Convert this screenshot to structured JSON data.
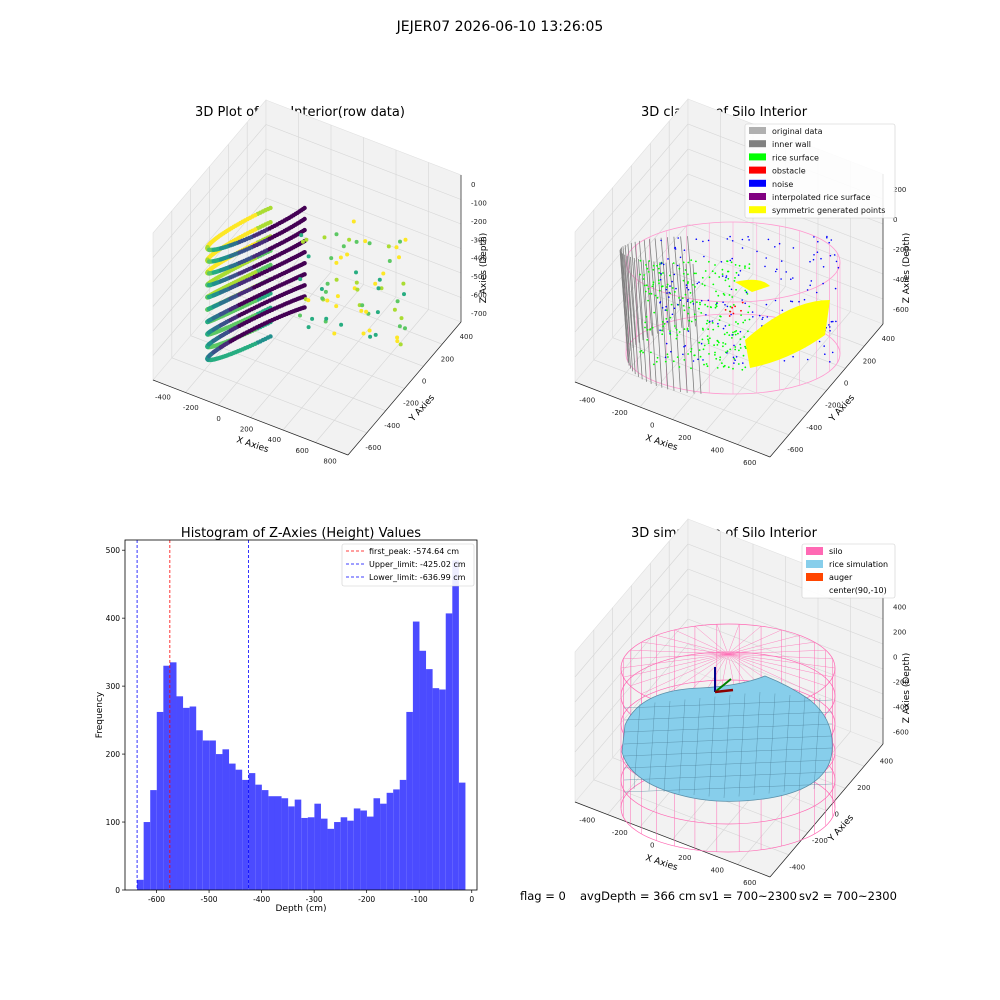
{
  "figure": {
    "suptitle": "JEJER07 2026-06-10 13:26:05"
  },
  "status_line": {
    "flag": "flag = 0",
    "avg_depth": "avgDepth = 366 cm",
    "sv1": "sv1 = 700~2300",
    "sv2": "sv2 = 700~2300"
  },
  "chart_data": [
    {
      "type": "scatter",
      "title": "3D Plot of Silo Interior(row data)",
      "xlabel": "X Axies",
      "ylabel": "Y Axies",
      "zlabel": "Z Axies (Depth)",
      "x_ticks": [
        -400,
        -200,
        0,
        200,
        400,
        600,
        800
      ],
      "y_ticks": [
        -600,
        -400,
        -200,
        0,
        200,
        400
      ],
      "z_ticks": [
        0,
        -100,
        -200,
        -300,
        -400,
        -500,
        -600,
        -700
      ],
      "colormap": "viridis"
    },
    {
      "type": "scatter",
      "title": "3D classify of Silo Interior",
      "xlabel": "X Axies",
      "ylabel": "Y Axies",
      "zlabel": "Z Axies (Depth)",
      "x_ticks": [
        -400,
        -200,
        0,
        200,
        400,
        600
      ],
      "y_ticks": [
        -600,
        -400,
        -200,
        0,
        200,
        400
      ],
      "z_ticks": [
        200,
        0,
        -200,
        -400,
        -600
      ],
      "legend": [
        {
          "label": "original data",
          "color": "#b0b0b0"
        },
        {
          "label": "inner wall",
          "color": "#808080"
        },
        {
          "label": "rice surface",
          "color": "#00ff00"
        },
        {
          "label": "obstacle",
          "color": "#ff0000"
        },
        {
          "label": "noise",
          "color": "#0000ff"
        },
        {
          "label": "interpolated rice surface",
          "color": "#800080"
        },
        {
          "label": "symmetric generated points",
          "color": "#ffff00"
        }
      ]
    },
    {
      "type": "bar",
      "title": "Histogram of Z-Axies (Height) Values",
      "xlabel": "Depth (cm)",
      "ylabel": "Frequency",
      "bar_color": "#4b4bff",
      "xlim": [
        -660,
        10
      ],
      "ylim": [
        0,
        515
      ],
      "x_ticks": [
        -600,
        -500,
        -400,
        -300,
        -200,
        -100,
        0
      ],
      "y_ticks": [
        0,
        100,
        200,
        300,
        400,
        500
      ],
      "bin_start": -637,
      "bin_width": 12.5,
      "values": [
        15,
        100,
        147,
        262,
        330,
        335,
        285,
        268,
        270,
        235,
        220,
        220,
        200,
        207,
        186,
        177,
        162,
        172,
        155,
        147,
        138,
        138,
        135,
        123,
        133,
        106,
        107,
        127,
        105,
        90,
        100,
        107,
        102,
        120,
        117,
        108,
        135,
        127,
        143,
        148,
        162,
        262,
        395,
        352,
        325,
        297,
        295,
        407,
        485,
        158
      ],
      "vlines": [
        {
          "label": "first_peak: -574.64 cm",
          "x": -574.64,
          "color": "#ff0000"
        },
        {
          "label": "Upper_limit: -425.02 cm",
          "x": -425.02,
          "color": "#0000ff"
        },
        {
          "label": "Lower_limit: -636.99 cm",
          "x": -636.99,
          "color": "#0000ff"
        }
      ],
      "legend_position": "upper-right"
    },
    {
      "type": "area",
      "title": "3D simulation of Silo Interior",
      "xlabel": "X Axies",
      "ylabel": "Y Axies",
      "zlabel": "Z Axies (Depth)",
      "x_ticks": [
        -400,
        -200,
        0,
        200,
        400,
        600
      ],
      "y_ticks": [
        -400,
        -200,
        0,
        200,
        400
      ],
      "z_ticks": [
        400,
        200,
        0,
        -200,
        -400,
        -600
      ],
      "legend": [
        {
          "label": "silo",
          "color": "#ff69b4"
        },
        {
          "label": "rice simulation",
          "color": "#87ceeb"
        },
        {
          "label": "auger",
          "color": "#ff4500"
        },
        {
          "label": "center(90,-10)",
          "color": ""
        }
      ]
    }
  ]
}
